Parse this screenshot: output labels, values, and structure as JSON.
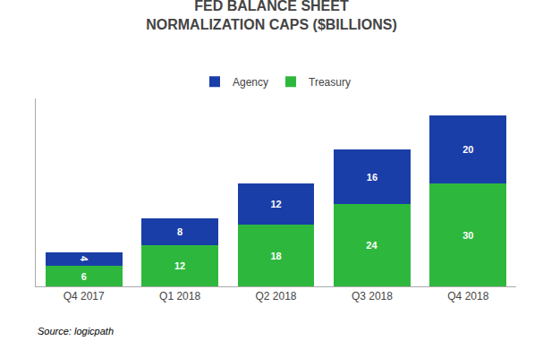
{
  "chart_data": {
    "type": "bar",
    "title": "FED BALANCE SHEET\nNORMALIZATION CAPS ($BILLIONS)",
    "categories": [
      "Q4 2017",
      "Q1 2018",
      "Q2 2018",
      "Q3 2018",
      "Q4 2018"
    ],
    "series": [
      {
        "name": "Treasury",
        "color": "#2db83d",
        "values": [
          6,
          12,
          18,
          24,
          30
        ]
      },
      {
        "name": "Agency",
        "color": "#1a3ea8",
        "values": [
          4,
          8,
          12,
          16,
          20
        ]
      }
    ],
    "stacked": true,
    "data_labels": true,
    "ylim": [
      0,
      55
    ],
    "tick_labels": "x",
    "grid": false,
    "legend": "top",
    "annotations": [
      "Source: logicpath"
    ]
  }
}
